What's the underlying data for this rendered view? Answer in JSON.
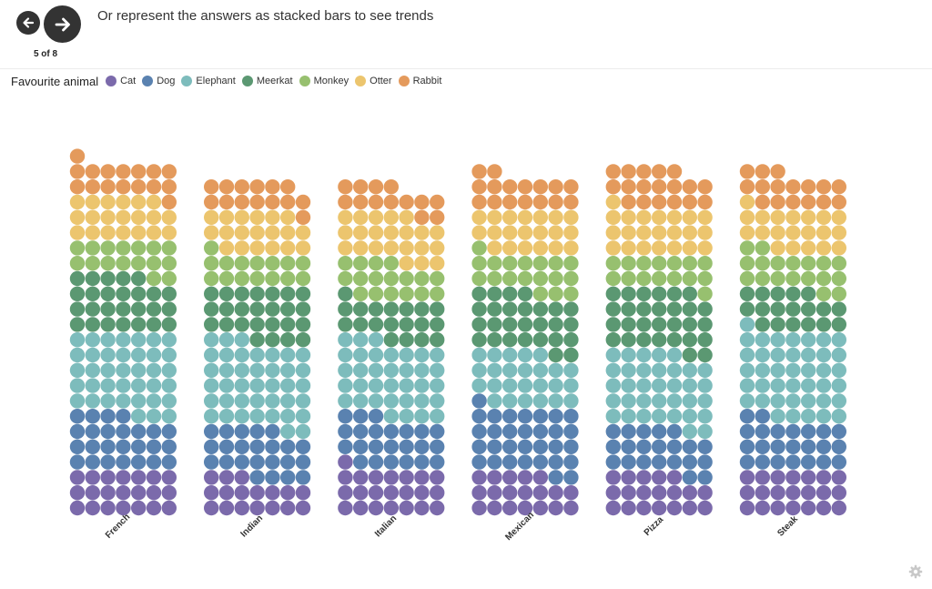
{
  "nav": {
    "prev_icon": "arrow-left-icon",
    "next_icon": "arrow-right-icon",
    "counter": "5 of 8"
  },
  "slide": {
    "title": "Or represent the answers as stacked bars to see trends"
  },
  "legend": {
    "title": "Favourite animal",
    "items": [
      {
        "label": "Cat",
        "color": "#7b6aab"
      },
      {
        "label": "Dog",
        "color": "#5a82b0"
      },
      {
        "label": "Elephant",
        "color": "#7dbcbc"
      },
      {
        "label": "Meerkat",
        "color": "#5b9872"
      },
      {
        "label": "Monkey",
        "color": "#97c06f"
      },
      {
        "label": "Otter",
        "color": "#ecc56e"
      },
      {
        "label": "Rabbit",
        "color": "#e49a5c"
      }
    ]
  },
  "settings_icon": "gear-icon",
  "chart_data": {
    "type": "bar",
    "stacked": true,
    "dots_per_row": 7,
    "categories": [
      "French",
      "Indian",
      "Italian",
      "Mexican",
      "Pizza",
      "Steak"
    ],
    "series": [
      {
        "name": "Cat",
        "values": [
          21,
          17,
          22,
          19,
          19,
          21
        ]
      },
      {
        "name": "Dog",
        "values": [
          25,
          23,
          23,
          31,
          21,
          23
        ]
      },
      {
        "name": "Elephant",
        "values": [
          38,
          40,
          35,
          25,
          35,
          41
        ]
      },
      {
        "name": "Meerkat",
        "values": [
          26,
          25,
          19,
          27,
          29,
          18
        ]
      },
      {
        "name": "Monkey",
        "values": [
          16,
          15,
          17,
          18,
          15,
          18
        ]
      },
      {
        "name": "Otter",
        "values": [
          20,
          19,
          22,
          20,
          22,
          20
        ]
      },
      {
        "name": "Rabbit",
        "values": [
          16,
          14,
          13,
          16,
          18,
          16
        ]
      }
    ]
  }
}
